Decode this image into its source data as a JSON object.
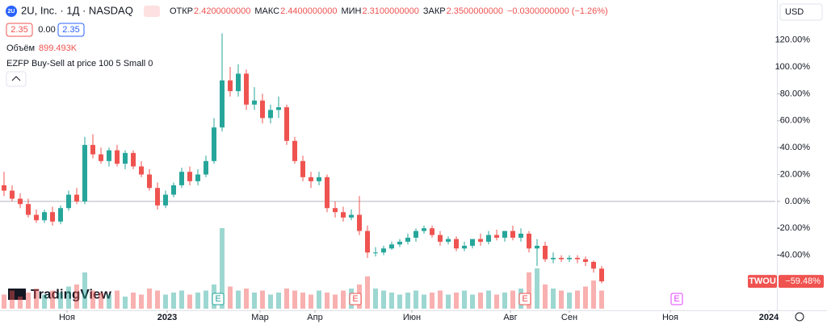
{
  "chart_data": {
    "type": "candlestick",
    "logo": "2U",
    "title": "2U, Inc. · 1Д · NASDAQ",
    "ohlc_legend": [
      {
        "name": "ОТКР",
        "label": "2.4200000000"
      },
      {
        "name": "МАКС",
        "label": "2.4400000000"
      },
      {
        "name": "МИН",
        "label": "2.3100000000"
      },
      {
        "name": "ЗАКР",
        "label": "2.3500000000"
      }
    ],
    "change_label": "−0.0300000000 (−1.26%)",
    "buttons": [
      "2.35",
      "0.00",
      "2.35"
    ],
    "volume_name": "Объём",
    "volume_label": "899.493K",
    "indicator": "EZFP Buy-Sell at price 100 5 Small 0",
    "currency": "USD",
    "brand": "TradingView",
    "up_color": "#26a69a",
    "down_color": "#ef5350",
    "baseline": 0,
    "xlim": [
      0,
      96
    ],
    "xticks": [
      {
        "value": 8.3,
        "label": "Ноя"
      },
      {
        "value": 20.7,
        "label": "2023"
      },
      {
        "value": 32.2,
        "label": "Мар"
      },
      {
        "value": 39,
        "label": "Апр"
      },
      {
        "value": 51,
        "label": "Июн"
      },
      {
        "value": 63.2,
        "label": "Авг"
      },
      {
        "value": 70.5,
        "label": "Сен"
      },
      {
        "value": 83,
        "label": "Ноя"
      },
      {
        "value": 95.2,
        "label": "2024"
      }
    ],
    "ylim": [
      -81,
      133
    ],
    "yticks": [
      {
        "value": 120,
        "label": "120.00%"
      },
      {
        "value": 100,
        "label": "100.00%"
      },
      {
        "value": 80,
        "label": "80.00%"
      },
      {
        "value": 60,
        "label": "60.00%"
      },
      {
        "value": 40,
        "label": "40.00%"
      },
      {
        "value": 20,
        "label": "20.00%"
      },
      {
        "value": 0,
        "label": "0.00%"
      },
      {
        "value": -20,
        "label": "-20.00%"
      },
      {
        "value": -40,
        "label": "-40.00%"
      }
    ],
    "open": [
      12,
      8,
      2,
      -2,
      -10,
      -14,
      -8,
      -15,
      -5,
      5,
      0,
      42,
      35,
      30,
      38,
      28,
      36,
      26,
      20,
      10,
      -3,
      5,
      12,
      22,
      15,
      20,
      30,
      55,
      90,
      82,
      95,
      72,
      75,
      62,
      68,
      70,
      45,
      30,
      18,
      15,
      18,
      -5,
      -8,
      -12,
      -10,
      -22,
      -38,
      -38,
      -35,
      -32,
      -30,
      -27,
      -22,
      -20,
      -25,
      -30,
      -28,
      -35,
      -33,
      -28,
      -30,
      -25,
      -27,
      -22,
      -27,
      -24,
      -35,
      -33,
      -43,
      -42,
      -43,
      -42,
      -43,
      -45,
      -50
    ],
    "high": [
      22,
      12,
      6,
      2,
      -6,
      -6,
      -4,
      -3,
      8,
      10,
      48,
      50,
      40,
      40,
      42,
      38,
      38,
      30,
      24,
      14,
      8,
      14,
      25,
      26,
      24,
      34,
      62,
      125,
      100,
      102,
      98,
      85,
      80,
      72,
      78,
      72,
      48,
      34,
      22,
      22,
      20,
      0,
      -4,
      -6,
      4,
      -18,
      -34,
      -33,
      -30,
      -28,
      -24,
      -20,
      -18,
      -18,
      -22,
      -26,
      -26,
      -30,
      -28,
      -24,
      -22,
      -21,
      -22,
      -18,
      -20,
      -22,
      -28,
      -30,
      -38,
      -40,
      -40,
      -40,
      -41,
      -44,
      -48
    ],
    "low": [
      4,
      0,
      -5,
      -12,
      -16,
      -16,
      -18,
      -17,
      -7,
      -2,
      -2,
      32,
      28,
      26,
      26,
      24,
      24,
      18,
      8,
      -6,
      -5,
      3,
      10,
      12,
      12,
      18,
      28,
      52,
      78,
      78,
      68,
      68,
      58,
      58,
      62,
      42,
      28,
      15,
      10,
      12,
      -8,
      -12,
      -15,
      -14,
      -25,
      -42,
      -41,
      -40,
      -36,
      -34,
      -32,
      -30,
      -24,
      -27,
      -33,
      -32,
      -37,
      -37,
      -35,
      -33,
      -32,
      -29,
      -30,
      -29,
      -30,
      -38,
      -48,
      -45,
      -46,
      -45,
      -45,
      -46,
      -48,
      -53,
      -61
    ],
    "close": [
      8,
      2,
      -2,
      -10,
      -14,
      -8,
      -15,
      -5,
      5,
      0,
      42,
      35,
      30,
      38,
      28,
      36,
      26,
      20,
      10,
      -3,
      5,
      12,
      22,
      15,
      20,
      30,
      55,
      90,
      82,
      95,
      72,
      75,
      62,
      68,
      70,
      45,
      30,
      18,
      15,
      18,
      -5,
      -8,
      -12,
      -10,
      -22,
      -38,
      -38,
      -35,
      -32,
      -30,
      -27,
      -22,
      -20,
      -25,
      -30,
      -28,
      -35,
      -33,
      -28,
      -30,
      -25,
      -27,
      -22,
      -27,
      -24,
      -35,
      -33,
      -43,
      -42,
      -43,
      -42,
      -43,
      -45,
      -50,
      -59.48
    ],
    "volume": [
      700,
      900,
      600,
      800,
      1000,
      700,
      900,
      800,
      1100,
      1200,
      1800,
      900,
      800,
      700,
      900,
      600,
      800,
      700,
      1000,
      900,
      700,
      800,
      900,
      700,
      800,
      900,
      1200,
      4000,
      1100,
      900,
      1000,
      800,
      900,
      700,
      800,
      1000,
      900,
      800,
      700,
      900,
      800,
      700,
      900,
      1000,
      1200,
      1600,
      1000,
      900,
      800,
      700,
      800,
      900,
      700,
      800,
      900,
      700,
      800,
      900,
      700,
      800,
      900,
      700,
      800,
      900,
      1000,
      1800,
      2000,
      1200,
      1000,
      900,
      800,
      900,
      1100,
      1400,
      899.493
    ],
    "events": [
      {
        "x": 27,
        "label": "E"
      },
      {
        "x": 44,
        "label": "E"
      },
      {
        "x": 65,
        "label": "E"
      },
      {
        "x": 83.8,
        "label": "E"
      }
    ],
    "price_tag": {
      "name": "TWOU",
      "label": "−59.48%"
    }
  }
}
